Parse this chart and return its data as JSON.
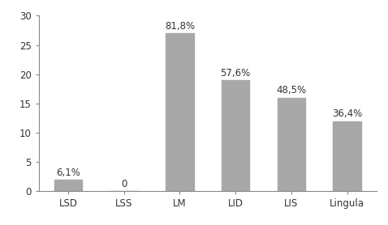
{
  "categories": [
    "LSD",
    "LSS",
    "LM",
    "LID",
    "LIS",
    "Lingula"
  ],
  "values": [
    2,
    0,
    27,
    19,
    16,
    12
  ],
  "labels": [
    "6,1%",
    "0",
    "81,8%",
    "57,6%",
    "48,5%",
    "36,4%"
  ],
  "bar_color": "#a8a8a8",
  "ylim": [
    0,
    30
  ],
  "yticks": [
    0,
    5,
    10,
    15,
    20,
    25,
    30
  ],
  "background_color": "#ffffff",
  "label_fontsize": 8.5,
  "tick_fontsize": 8.5,
  "bar_width": 0.5,
  "spine_color": "#888888",
  "text_color": "#333333"
}
